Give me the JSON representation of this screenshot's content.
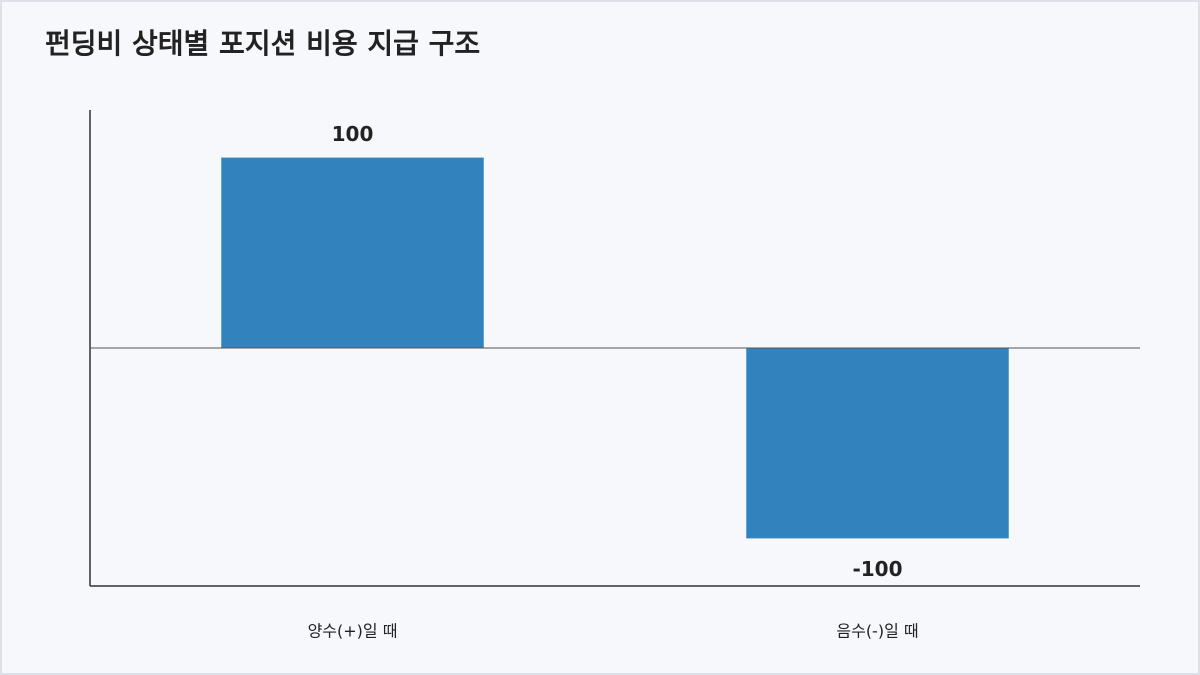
{
  "chart_data": {
    "type": "bar",
    "title": "펀딩비 상태별 포지션 비용 지급 구조",
    "categories": [
      "양수(+)일 때",
      "음수(-)일 때"
    ],
    "values": [
      100,
      -100
    ],
    "color": "#3182bd",
    "ylim": [
      -125,
      125
    ]
  }
}
